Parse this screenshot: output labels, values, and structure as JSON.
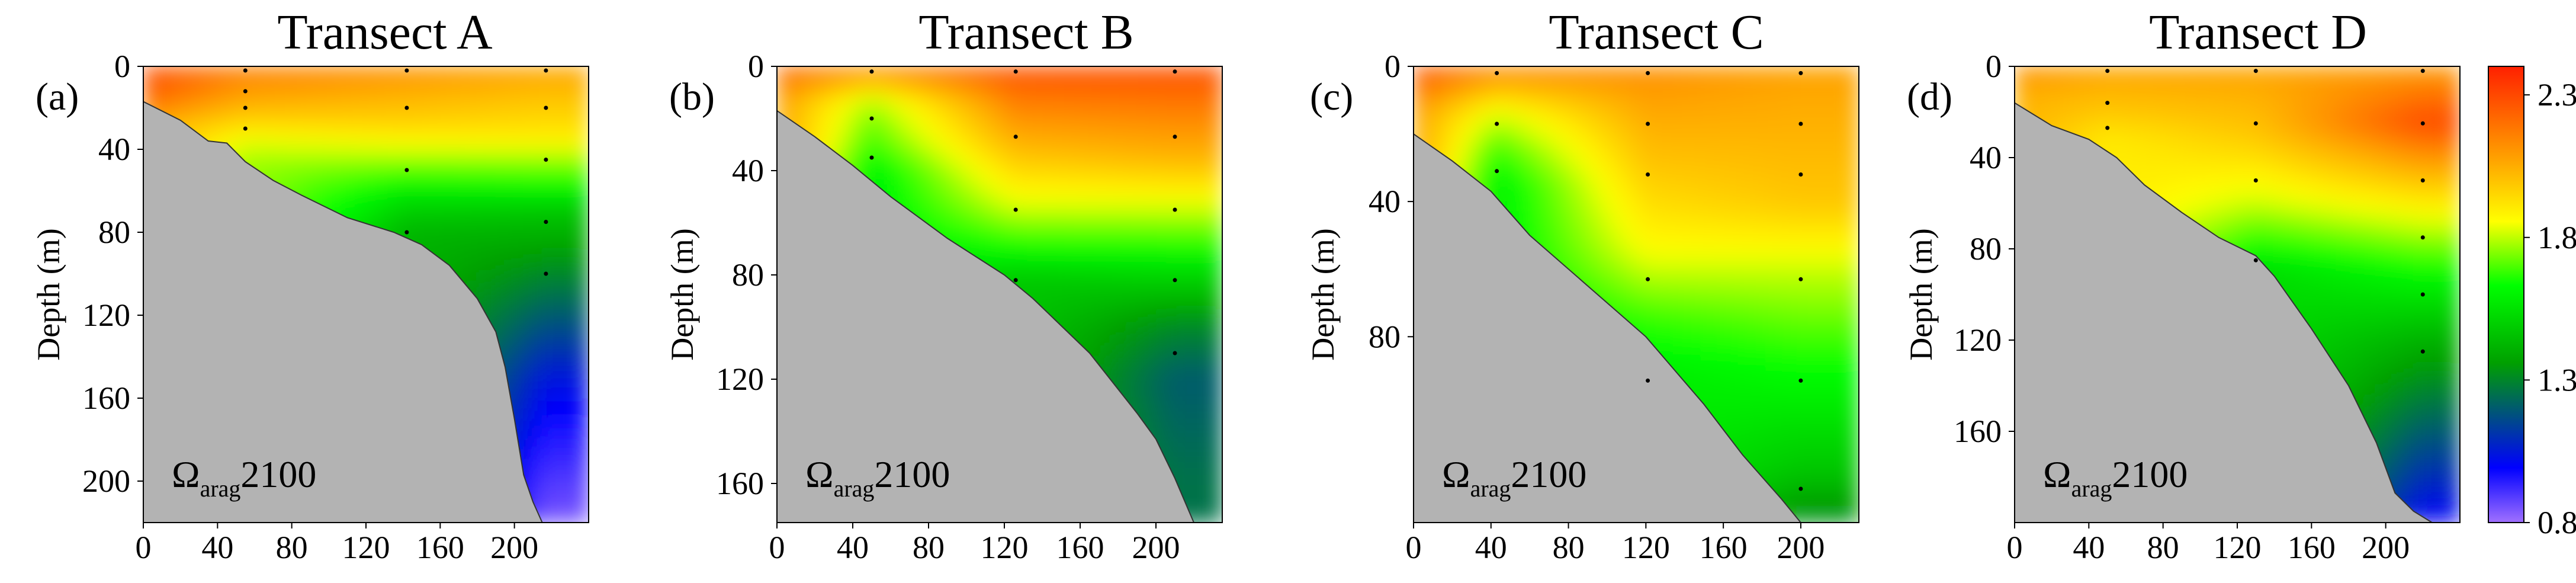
{
  "chart_data": [
    {
      "type": "heatmap",
      "panel_label": "(a)",
      "title": "Transect A",
      "ylabel": "Depth (m)",
      "xlabel": "",
      "annotation": {
        "symbol": "Ω",
        "subscript": "arag",
        "suffix": "2100"
      },
      "xlim": [
        0,
        240
      ],
      "ylim": [
        0,
        220
      ],
      "x_ticks": [
        0,
        40,
        80,
        120,
        160,
        200
      ],
      "y_ticks": [
        0,
        40,
        80,
        120,
        160,
        200
      ],
      "bathymetry": [
        [
          0,
          17
        ],
        [
          20,
          26
        ],
        [
          35,
          36
        ],
        [
          45,
          37
        ],
        [
          55,
          46
        ],
        [
          70,
          55
        ],
        [
          85,
          62
        ],
        [
          110,
          73
        ],
        [
          135,
          80
        ],
        [
          150,
          86
        ],
        [
          165,
          96
        ],
        [
          180,
          112
        ],
        [
          190,
          128
        ],
        [
          195,
          145
        ],
        [
          200,
          170
        ],
        [
          205,
          197
        ],
        [
          210,
          210
        ],
        [
          215,
          220
        ]
      ],
      "stations": [
        {
          "x": 55,
          "depths": [
            2,
            12,
            20,
            30
          ]
        },
        {
          "x": 142,
          "depths": [
            2,
            20,
            50,
            80
          ]
        },
        {
          "x": 217,
          "depths": [
            2,
            20,
            45,
            75,
            100
          ]
        }
      ],
      "omega_surface": [
        {
          "x": 0,
          "profile": [
            [
              0,
              2.3
            ],
            [
              15,
              2.25
            ],
            [
              30,
              2.05
            ]
          ]
        },
        {
          "x": 55,
          "profile": [
            [
              0,
              2.2
            ],
            [
              20,
              2.05
            ],
            [
              35,
              1.85
            ],
            [
              45,
              1.75
            ]
          ]
        },
        {
          "x": 142,
          "profile": [
            [
              0,
              2.15
            ],
            [
              30,
              1.95
            ],
            [
              45,
              1.75
            ],
            [
              60,
              1.55
            ],
            [
              80,
              1.4
            ]
          ]
        },
        {
          "x": 217,
          "profile": [
            [
              0,
              2.1
            ],
            [
              35,
              1.9
            ],
            [
              45,
              1.75
            ],
            [
              70,
              1.45
            ],
            [
              100,
              1.3
            ],
            [
              150,
              1.05
            ],
            [
              200,
              0.9
            ],
            [
              220,
              0.85
            ]
          ]
        }
      ]
    },
    {
      "type": "heatmap",
      "panel_label": "(b)",
      "title": "Transect B",
      "ylabel": "Depth (m)",
      "xlabel": "",
      "annotation": {
        "symbol": "Ω",
        "subscript": "arag",
        "suffix": "2100"
      },
      "xlim": [
        0,
        235
      ],
      "ylim": [
        0,
        175
      ],
      "x_ticks": [
        0,
        40,
        80,
        120,
        160,
        200
      ],
      "y_ticks": [
        0,
        40,
        80,
        120,
        160
      ],
      "bathymetry": [
        [
          0,
          17
        ],
        [
          20,
          27
        ],
        [
          40,
          38
        ],
        [
          60,
          50
        ],
        [
          90,
          66
        ],
        [
          120,
          80
        ],
        [
          135,
          89
        ],
        [
          165,
          110
        ],
        [
          190,
          133
        ],
        [
          200,
          143
        ],
        [
          210,
          158
        ],
        [
          220,
          175
        ]
      ],
      "stations": [
        {
          "x": 50,
          "depths": [
            2,
            20,
            35
          ]
        },
        {
          "x": 126,
          "depths": [
            2,
            27,
            55,
            82
          ]
        },
        {
          "x": 210,
          "depths": [
            2,
            27,
            55,
            82,
            110
          ]
        }
      ],
      "omega_surface": [
        {
          "x": 0,
          "profile": [
            [
              0,
              2.25
            ],
            [
              15,
              2.1
            ]
          ]
        },
        {
          "x": 50,
          "profile": [
            [
              0,
              2.2
            ],
            [
              15,
              1.75
            ],
            [
              30,
              1.65
            ],
            [
              40,
              1.55
            ]
          ]
        },
        {
          "x": 126,
          "profile": [
            [
              0,
              2.3
            ],
            [
              30,
              2.05
            ],
            [
              55,
              1.8
            ],
            [
              70,
              1.6
            ],
            [
              82,
              1.45
            ]
          ]
        },
        {
          "x": 210,
          "profile": [
            [
              0,
              2.3
            ],
            [
              35,
              2.05
            ],
            [
              55,
              1.8
            ],
            [
              75,
              1.55
            ],
            [
              100,
              1.3
            ],
            [
              120,
              1.2
            ],
            [
              160,
              1.25
            ]
          ]
        }
      ]
    },
    {
      "type": "heatmap",
      "panel_label": "(c)",
      "title": "Transect C",
      "ylabel": "Depth (m)",
      "xlabel": "",
      "annotation": {
        "symbol": "Ω",
        "subscript": "arag",
        "suffix": "2100"
      },
      "xlim": [
        0,
        230
      ],
      "ylim": [
        0,
        135
      ],
      "x_ticks": [
        0,
        40,
        80,
        120,
        160,
        200
      ],
      "y_ticks": [
        0,
        40,
        80
      ],
      "bathymetry": [
        [
          0,
          20
        ],
        [
          20,
          28
        ],
        [
          40,
          37
        ],
        [
          60,
          50
        ],
        [
          90,
          65
        ],
        [
          120,
          80
        ],
        [
          150,
          100
        ],
        [
          170,
          115
        ],
        [
          190,
          128
        ],
        [
          200,
          135
        ]
      ],
      "stations": [
        {
          "x": 43,
          "depths": [
            2,
            17,
            31
          ]
        },
        {
          "x": 121,
          "depths": [
            2,
            17,
            32,
            63,
            93
          ]
        },
        {
          "x": 200,
          "depths": [
            2,
            17,
            32,
            63,
            93,
            125
          ]
        }
      ],
      "omega_surface": [
        {
          "x": 0,
          "profile": [
            [
              0,
              2.3
            ],
            [
              15,
              2.1
            ]
          ]
        },
        {
          "x": 43,
          "profile": [
            [
              0,
              2.2
            ],
            [
              15,
              1.8
            ],
            [
              25,
              1.65
            ],
            [
              35,
              1.55
            ]
          ]
        },
        {
          "x": 121,
          "profile": [
            [
              0,
              2.15
            ],
            [
              30,
              2.0
            ],
            [
              55,
              1.85
            ],
            [
              75,
              1.65
            ],
            [
              90,
              1.55
            ]
          ]
        },
        {
          "x": 200,
          "profile": [
            [
              0,
              2.1
            ],
            [
              40,
              2.0
            ],
            [
              60,
              1.8
            ],
            [
              90,
              1.6
            ],
            [
              120,
              1.45
            ],
            [
              135,
              1.3
            ]
          ]
        }
      ]
    },
    {
      "type": "heatmap",
      "panel_label": "(d)",
      "title": "Transect D",
      "ylabel": "Depth (m)",
      "xlabel": "",
      "annotation": {
        "symbol": "Ω",
        "subscript": "arag",
        "suffix": "2100"
      },
      "xlim": [
        0,
        240
      ],
      "ylim": [
        0,
        200
      ],
      "x_ticks": [
        0,
        40,
        80,
        120,
        160,
        200
      ],
      "y_ticks": [
        0,
        40,
        80,
        120,
        160
      ],
      "bathymetry": [
        [
          0,
          16
        ],
        [
          20,
          26
        ],
        [
          40,
          32
        ],
        [
          55,
          40
        ],
        [
          70,
          52
        ],
        [
          90,
          64
        ],
        [
          110,
          75
        ],
        [
          130,
          83
        ],
        [
          140,
          92
        ],
        [
          160,
          115
        ],
        [
          180,
          140
        ],
        [
          195,
          165
        ],
        [
          205,
          187
        ],
        [
          215,
          195
        ],
        [
          225,
          200
        ]
      ],
      "stations": [
        {
          "x": 50,
          "depths": [
            2,
            16,
            27
          ]
        },
        {
          "x": 130,
          "depths": [
            2,
            25,
            50,
            85
          ]
        },
        {
          "x": 220,
          "depths": [
            2,
            25,
            50,
            75,
            100,
            125
          ]
        }
      ],
      "omega_surface": [
        {
          "x": 0,
          "profile": [
            [
              0,
              2.15
            ],
            [
              15,
              2.05
            ]
          ]
        },
        {
          "x": 50,
          "profile": [
            [
              0,
              2.1
            ],
            [
              20,
              2.0
            ],
            [
              32,
              1.9
            ]
          ]
        },
        {
          "x": 130,
          "profile": [
            [
              0,
              2.1
            ],
            [
              30,
              2.0
            ],
            [
              60,
              1.8
            ],
            [
              80,
              1.6
            ],
            [
              90,
              1.5
            ]
          ]
        },
        {
          "x": 220,
          "profile": [
            [
              0,
              2.1
            ],
            [
              25,
              2.3
            ],
            [
              60,
              1.9
            ],
            [
              90,
              1.6
            ],
            [
              120,
              1.4
            ],
            [
              160,
              1.2
            ],
            [
              190,
              1.05
            ],
            [
              200,
              1.0
            ]
          ]
        }
      ]
    }
  ],
  "colorbar": {
    "ticks": [
      "2.3",
      "1.8",
      "1.3",
      "0.8"
    ],
    "tick_values": [
      2.3,
      1.8,
      1.3,
      0.8
    ],
    "range": [
      0.8,
      2.4
    ],
    "colormap": [
      "#a070ff",
      "#0000ff",
      "#00a000",
      "#00ff00",
      "#ffff00",
      "#ffa000",
      "#ff2000"
    ],
    "land_color": "#b3b3b3"
  }
}
